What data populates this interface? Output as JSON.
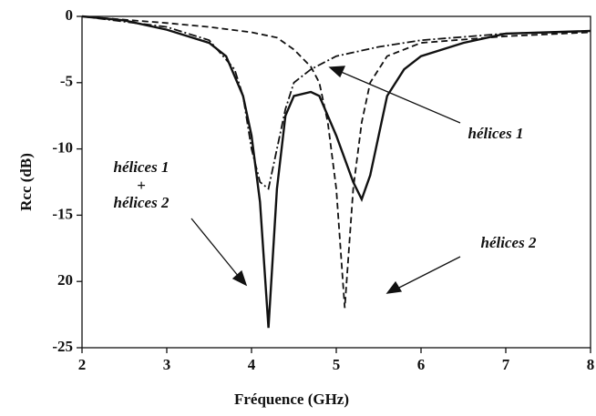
{
  "chart_data": {
    "type": "line",
    "xlabel": "Fréquence (GHz)",
    "ylabel": "Rcc  (dB)",
    "xlim": [
      2,
      8
    ],
    "xticks": [
      2,
      3,
      4,
      5,
      6,
      7,
      8
    ],
    "ylim": [
      -25,
      0
    ],
    "yticks": [
      0,
      -5,
      -10,
      -15,
      {
        "value": -20,
        "label": "20"
      },
      -25
    ],
    "annotations": [
      "hélices 1",
      "hélices 1",
      "+",
      "hélices 2",
      "hélices 2"
    ],
    "series": [
      {
        "color": "#111111",
        "style": "solid",
        "x": [
          2,
          2.5,
          3,
          3.5,
          3.7,
          3.9,
          4.0,
          4.1,
          4.2,
          4.3,
          4.4,
          4.5,
          4.7,
          4.8,
          5.0,
          5.2,
          5.3,
          5.4,
          5.6,
          5.8,
          6,
          6.5,
          7,
          7.5,
          8
        ],
        "values": [
          0,
          -0.3,
          -1,
          -2,
          -3,
          -6,
          -9,
          -14,
          -23.5,
          -13,
          -7.5,
          -6,
          -5.7,
          -6,
          -9,
          -12.5,
          -13.8,
          -12,
          -6,
          -4,
          -3,
          -2,
          -1.3,
          -1.2,
          -1.1
        ]
      },
      {
        "color": "#111111",
        "style": "dashdot",
        "x": [
          2,
          3,
          3.5,
          3.8,
          3.9,
          4.0,
          4.1,
          4.2,
          4.3,
          4.4,
          4.5,
          4.7,
          5,
          5.5,
          6,
          7,
          8
        ],
        "values": [
          0,
          -0.8,
          -1.8,
          -4,
          -6,
          -10,
          -12.5,
          -13,
          -10,
          -7,
          -5,
          -4,
          -3,
          -2.3,
          -1.8,
          -1.3,
          -1.1
        ]
      },
      {
        "color": "#111111",
        "style": "dashed",
        "x": [
          2,
          3,
          3.5,
          4,
          4.3,
          4.5,
          4.7,
          4.8,
          4.9,
          5.0,
          5.1,
          5.2,
          5.3,
          5.4,
          5.6,
          6,
          7,
          8
        ],
        "values": [
          0,
          -0.5,
          -0.8,
          -1.2,
          -1.6,
          -2.5,
          -3.8,
          -5,
          -8,
          -13,
          -22,
          -13,
          -8,
          -5,
          -3,
          -2,
          -1.5,
          -1.2
        ]
      }
    ]
  }
}
